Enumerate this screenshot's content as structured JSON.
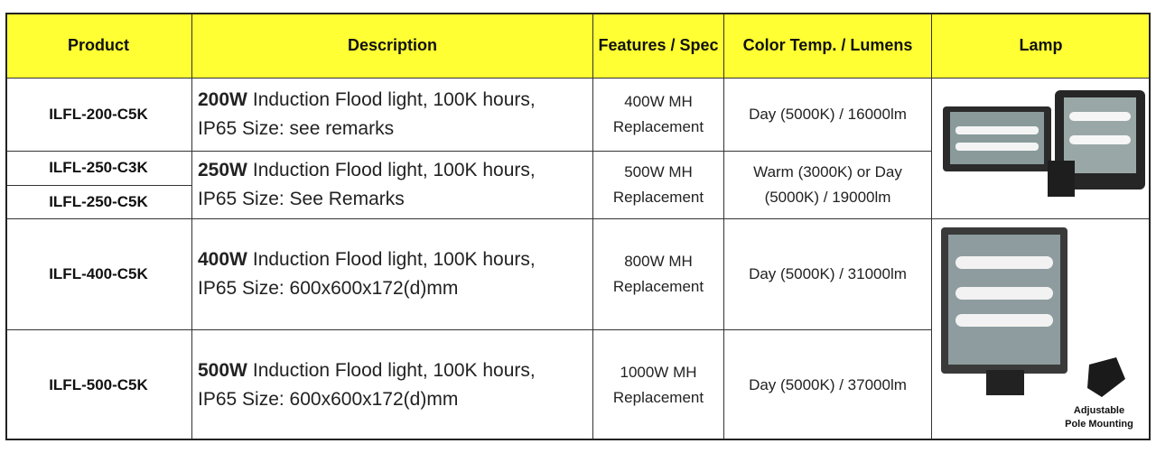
{
  "header": {
    "columns": [
      "Product",
      "Description",
      "Features / Spec",
      "Color Temp. / Lumens",
      "Lamp"
    ]
  },
  "table": {
    "rows": [
      {
        "products": [
          "ILFL-200-C5K"
        ],
        "watt": "200W",
        "description": [
          "Induction Flood light, 100K hours,",
          "IP65  Size: see remarks"
        ],
        "spec": [
          "400W MH",
          "Replacement"
        ],
        "color": [
          "Day (5000K) / 16000lm"
        ]
      },
      {
        "products": [
          "ILFL-250-C3K",
          "ILFL-250-C5K"
        ],
        "watt": "250W",
        "description": [
          "Induction Flood light, 100K hours,",
          "IP65  Size: See Remarks"
        ],
        "spec": [
          "500W MH",
          "Replacement"
        ],
        "color": [
          "Warm (3000K) or Day",
          "(5000K) / 19000lm"
        ]
      },
      {
        "products": [
          "ILFL-400-C5K"
        ],
        "watt": "400W",
        "description": [
          "Induction Flood light, 100K hours,",
          "IP65 Size: 600x600x172(d)mm"
        ],
        "spec": [
          "800W MH",
          "Replacement"
        ],
        "color": [
          "Day (5000K) / 31000lm"
        ]
      },
      {
        "products": [
          "ILFL-500-C5K"
        ],
        "watt": "500W",
        "description": [
          "Induction Flood light, 100K hours,",
          "IP65  Size: 600x600x172(d)mm"
        ],
        "spec": [
          "1000W MH",
          "Replacement"
        ],
        "color": [
          "Day (5000K) / 37000lm"
        ]
      }
    ]
  },
  "lamp_caption": [
    "Adjustable",
    "Pole Mounting"
  ]
}
